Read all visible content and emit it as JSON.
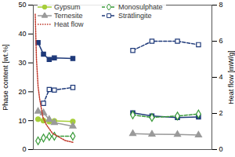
{
  "chart_data": {
    "type": "line",
    "y_label": "Phase content [wt.%]",
    "y2_label": "Heat flow [mW/g]",
    "x": [
      0.75,
      1.6,
      2.5,
      3.3,
      6.2,
      11,
      15.6,
      18.6,
      22.6,
      25.9
    ],
    "xlim": [
      0,
      28
    ],
    "ylim": [
      0,
      50
    ],
    "yticks": [
      0,
      10,
      20,
      30,
      40,
      50
    ],
    "y2lim": [
      0,
      8
    ],
    "y2ticks": [
      0,
      2,
      4,
      6,
      8
    ],
    "tick_labels": "y",
    "grid": false,
    "legend": "top-left",
    "series": [
      {
        "color": "#1f3a7a",
        "marker": "square",
        "line_style": "solid",
        "values": [
          37,
          33,
          31.2,
          31.7,
          31.5,
          null,
          12.7,
          11.6,
          11.1,
          11.3
        ]
      },
      {
        "name": "Gypsum",
        "color": "#a6ce39",
        "marker": "circle",
        "line_style": "solid",
        "values": [
          10.5,
          10,
          9.7,
          9.9,
          9.7,
          null,
          null,
          null,
          null,
          null
        ]
      },
      {
        "name": "Monosulphate",
        "color": "#3a9a3a",
        "marker": "diamond-open",
        "line_style": "dashed",
        "values": [
          3,
          4,
          4.5,
          4.6,
          4.6,
          null,
          12,
          11.1,
          11.6,
          12.3
        ]
      },
      {
        "name": "Ternesite",
        "color": "#9a9a9a",
        "marker": "triangle",
        "line_style": "solid",
        "values": [
          13.2,
          12.7,
          10.4,
          9.3,
          8.1,
          null,
          5.5,
          5.3,
          5.2,
          5.0
        ]
      },
      {
        "name": "Strätlingite",
        "color": "#1f3a7a",
        "marker": "square-open",
        "line_style": "dashed",
        "values": [
          null,
          16,
          20.8,
          20.6,
          21.5,
          null,
          34.3,
          37.5,
          37.5,
          36.3
        ]
      },
      {
        "name": "Heat flow",
        "color": "#c0392b",
        "marker": "none",
        "line_style": "dotted",
        "axis": "y2",
        "x": [
          0.3,
          0.5,
          0.75,
          1,
          1.5,
          2,
          3,
          4,
          5,
          6.2
        ],
        "values": [
          7.5,
          5,
          3.5,
          2.8,
          1.8,
          1.4,
          0.9,
          0.7,
          0.5,
          0.4
        ]
      }
    ]
  }
}
